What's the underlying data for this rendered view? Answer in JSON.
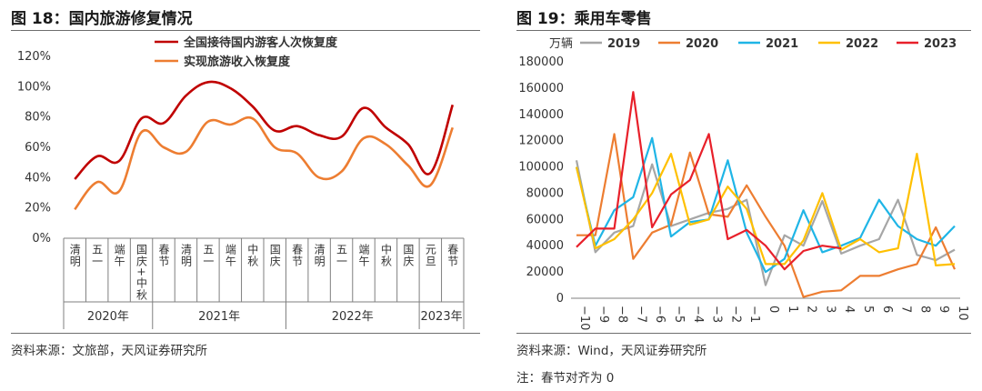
{
  "left": {
    "title": "图 18：国内旅游修复情况",
    "source": "资料来源：文旅部，天风证券研究所",
    "chart_data": {
      "type": "line",
      "categories": [
        "清明",
        "五一",
        "端午",
        "国庆+中秋",
        "春节",
        "清明",
        "五一",
        "端午",
        "中秋",
        "国庆",
        "春节",
        "清明",
        "五一",
        "端午",
        "中秋",
        "国庆",
        "元旦",
        "春节"
      ],
      "groups": [
        {
          "label": "2020年",
          "count": 4
        },
        {
          "label": "2021年",
          "count": 6
        },
        {
          "label": "2022年",
          "count": 6
        },
        {
          "label": "2023年",
          "count": 2
        }
      ],
      "yticks": [
        "0%",
        "20%",
        "40%",
        "60%",
        "80%",
        "100%",
        "120%"
      ],
      "ylim": [
        0,
        120
      ],
      "series": [
        {
          "name": "全国接待国内游客人次恢复度",
          "color": "#c00000",
          "values": [
            39,
            54,
            51,
            79,
            76,
            94,
            103,
            99,
            87,
            71,
            74,
            68,
            67,
            86,
            73,
            62,
            43,
            88
          ]
        },
        {
          "name": "实现旅游收入恢复度",
          "color": "#ed7d31",
          "values": [
            19,
            37,
            31,
            70,
            60,
            57,
            77,
            75,
            79,
            60,
            56,
            40,
            44,
            66,
            62,
            48,
            35,
            73
          ]
        }
      ]
    }
  },
  "right": {
    "title": "图 19：乘用车零售",
    "unit": "万辆",
    "source": "资料来源：Wind，天风证券研究所",
    "note": "注：春节对齐为 0",
    "chart_data": {
      "type": "line",
      "x": [
        -10,
        -9,
        -8,
        -7,
        -6,
        -5,
        -4,
        -3,
        -2,
        -1,
        0,
        1,
        2,
        3,
        4,
        5,
        6,
        7,
        8,
        9,
        10
      ],
      "xlabels": [
        "−10",
        "−9",
        "−8",
        "−7",
        "−6",
        "−5",
        "−4",
        "−3",
        "−2",
        "−1",
        "0",
        "1",
        "2",
        "3",
        "4",
        "5",
        "6",
        "7",
        "8",
        "9",
        "10"
      ],
      "yticks": [
        "0",
        "20000",
        "40000",
        "60000",
        "80000",
        "100000",
        "120000",
        "140000",
        "160000",
        "180000"
      ],
      "ylim": [
        0,
        180000
      ],
      "series": [
        {
          "name": "2019",
          "color": "#a6a6a6",
          "values": [
            105000,
            35000,
            50000,
            55000,
            102000,
            55000,
            60000,
            65000,
            68000,
            75000,
            10000,
            48000,
            40000,
            74000,
            34000,
            40000,
            45000,
            75000,
            33000,
            29000,
            37000
          ]
        },
        {
          "name": "2020",
          "color": "#ed7d31",
          "values": [
            48000,
            48000,
            125000,
            30000,
            50000,
            56000,
            111000,
            64000,
            62000,
            86000,
            62000,
            40000,
            1000,
            5000,
            6000,
            17000,
            17000,
            22000,
            26000,
            54000,
            22000
          ]
        },
        {
          "name": "2021",
          "color": "#1fb5e6",
          "values": [
            100000,
            40000,
            67000,
            77000,
            122000,
            47000,
            58000,
            60000,
            105000,
            50000,
            20000,
            30000,
            67000,
            35000,
            40000,
            46000,
            75000,
            55000,
            45000,
            40000,
            55000
          ]
        },
        {
          "name": "2022",
          "color": "#ffc000",
          "values": [
            100000,
            38000,
            45000,
            60000,
            80000,
            110000,
            56000,
            60000,
            85000,
            68000,
            26000,
            26000,
            44000,
            80000,
            37000,
            45000,
            35000,
            38000,
            110000,
            25000,
            26000
          ]
        },
        {
          "name": "2023",
          "color": "#e8202a",
          "values": [
            39000,
            53000,
            53000,
            157000,
            54000,
            79000,
            90000,
            125000,
            45000,
            52000,
            40000,
            22000,
            36000,
            40000,
            38000,
            null,
            null,
            null,
            null,
            null,
            null
          ]
        }
      ]
    }
  }
}
